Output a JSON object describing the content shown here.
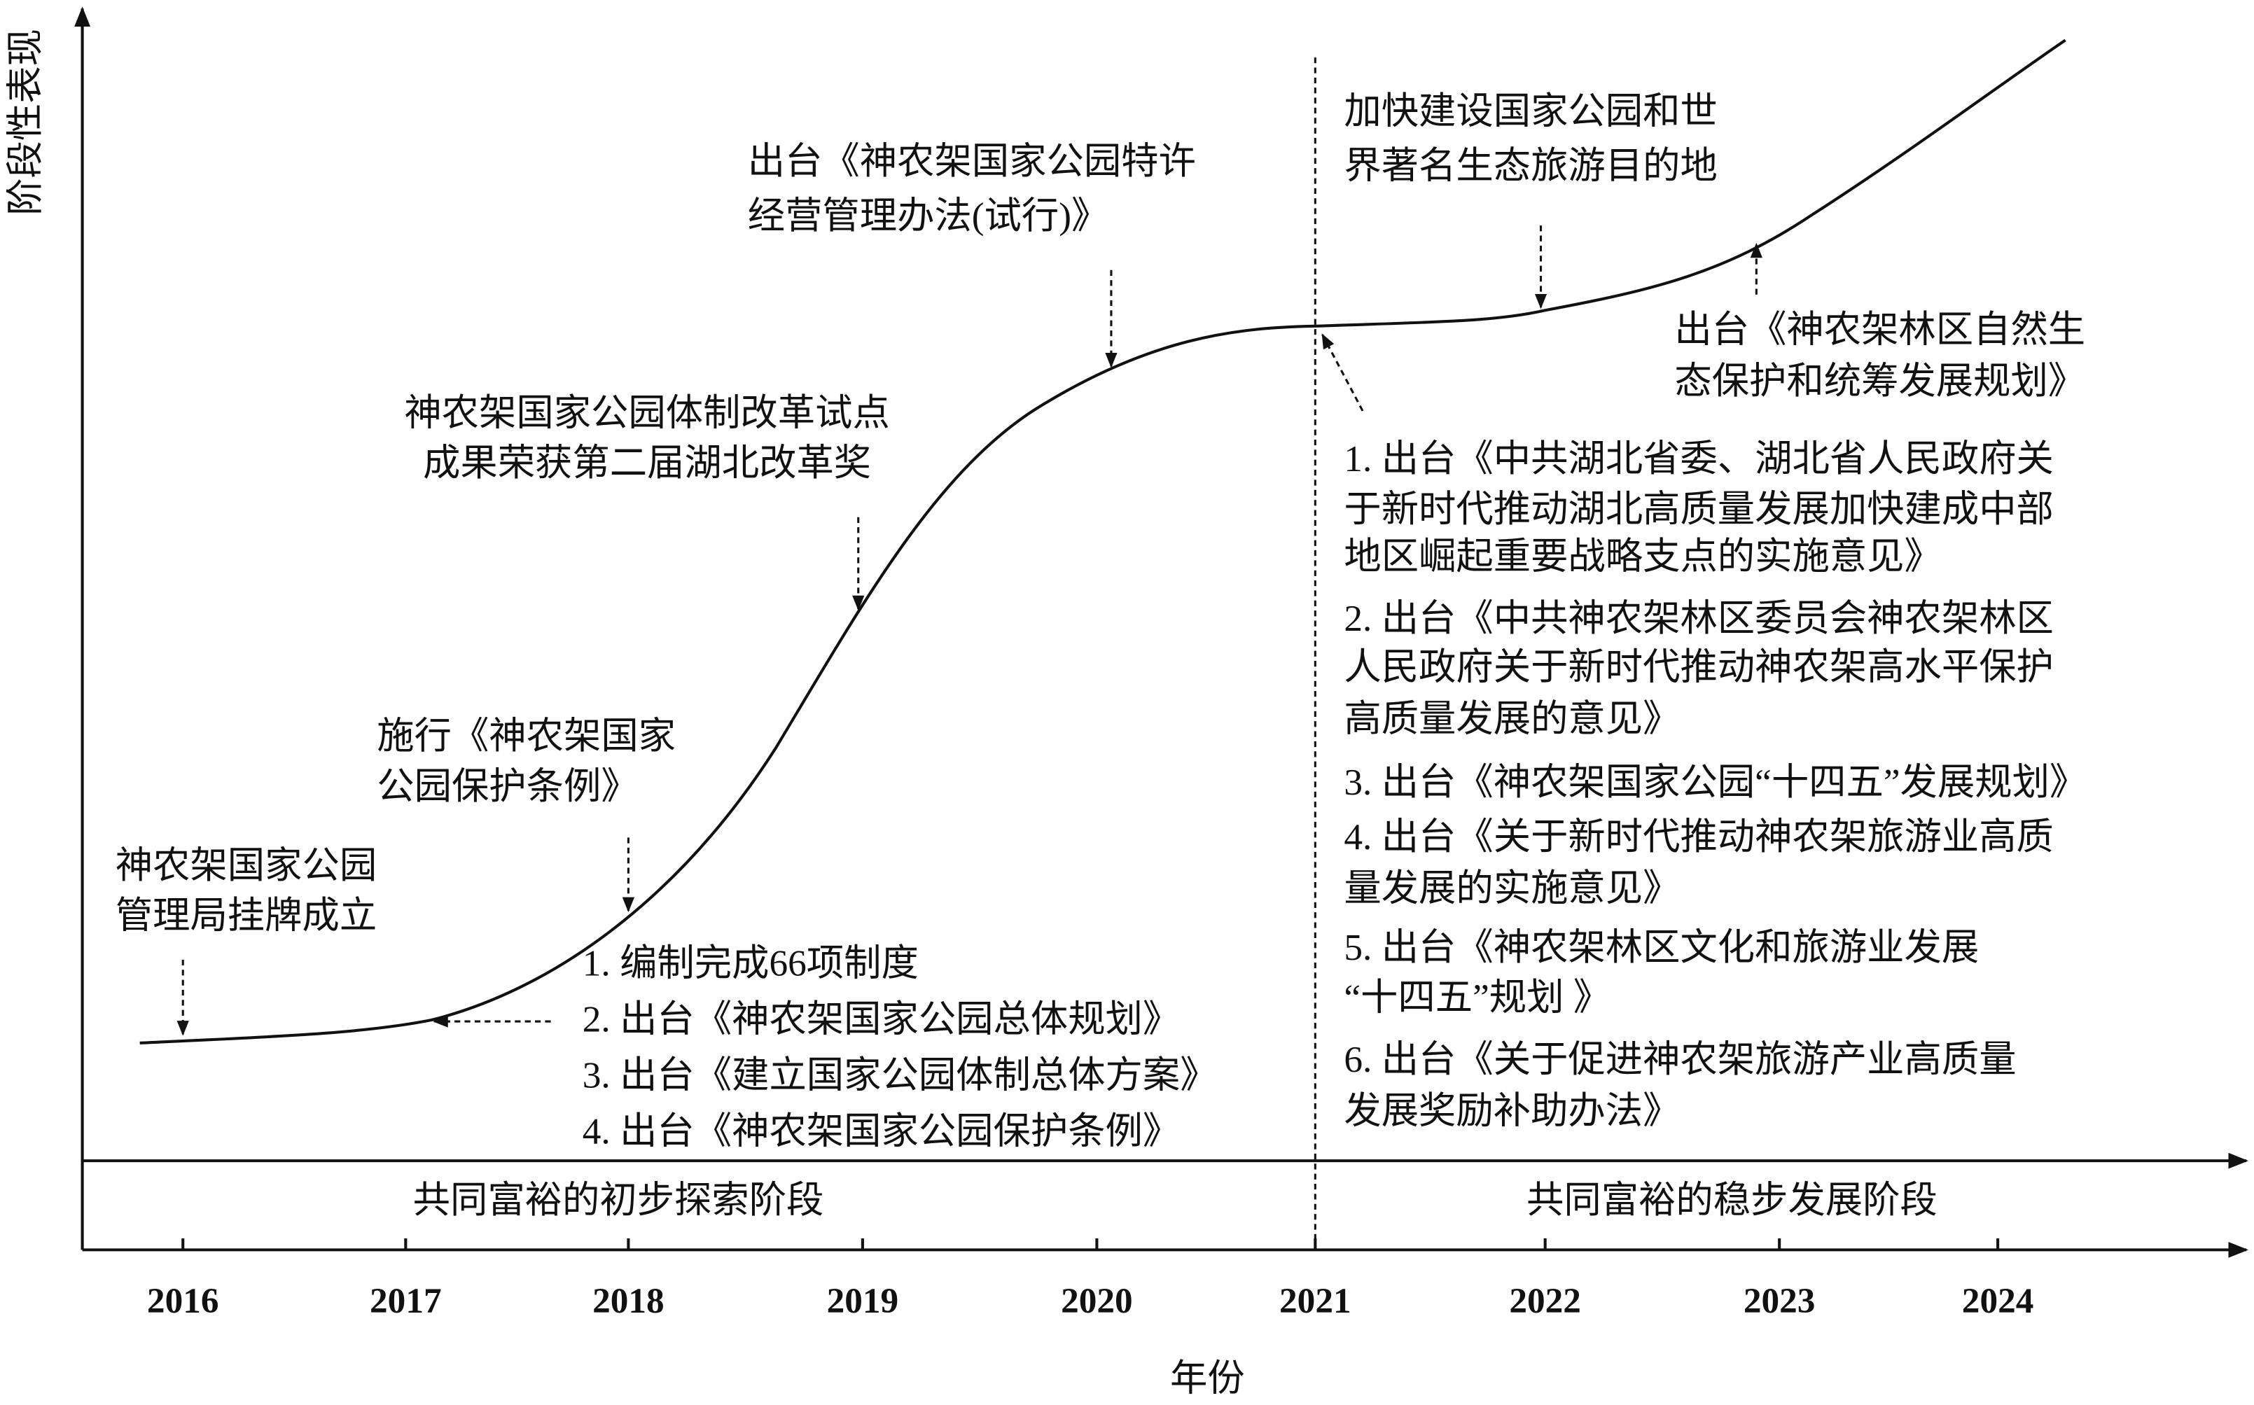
{
  "axes": {
    "y_label": "阶段性表现",
    "x_label": "年份",
    "years": [
      "2016",
      "2017",
      "2018",
      "2019",
      "2020",
      "2021",
      "2022",
      "2023",
      "2024"
    ]
  },
  "stages": [
    "共同富裕的初步探索阶段",
    "共同富裕的稳步发展阶段"
  ],
  "annotations": [
    {
      "lines": [
        "神农架国家公园",
        "管理局挂牌成立"
      ]
    },
    {
      "lines": [
        "施行《神农架国家",
        "公园保护条例》"
      ]
    },
    {
      "lines": [
        "神农架国家公园体制改革试点",
        "成果荣获第二届湖北改革奖"
      ]
    },
    {
      "lines": [
        "出台《神农架国家公园特许",
        "经营管理办法(试行)》"
      ]
    },
    {
      "lines": [
        "1. 编制完成66项制度",
        "2. 出台《神农架国家公园总体规划》",
        "3. 出台《建立国家公园体制总体方案》",
        "4. 出台《神农架国家公园保护条例》"
      ]
    },
    {
      "lines": [
        "加快建设国家公园和世",
        "界著名生态旅游目的地"
      ]
    },
    {
      "lines": [
        "出台《神农架林区自然生",
        "态保护和统筹发展规划》"
      ]
    },
    {
      "lines": [
        "1. 出台《中共湖北省委、湖北省人民政府关",
        "于新时代推动湖北高质量发展加快建成中部",
        "地区崛起重要战略支点的实施意见》",
        "2. 出台《中共神农架林区委员会神农架林区",
        "人民政府关于新时代推动神农架高水平保护",
        "高质量发展的意见》",
        "3. 出台《神农架国家公园“十四五”发展规划》",
        "4. 出台《关于新时代推动神农架旅游业高质",
        "量发展的实施意见》",
        "5. 出台《神农架林区文化和旅游业发展",
        "“十四五”规划 》",
        "6. 出台《关于促进神农架旅游产业高质量",
        "发展奖励补助办法》"
      ]
    }
  ]
}
